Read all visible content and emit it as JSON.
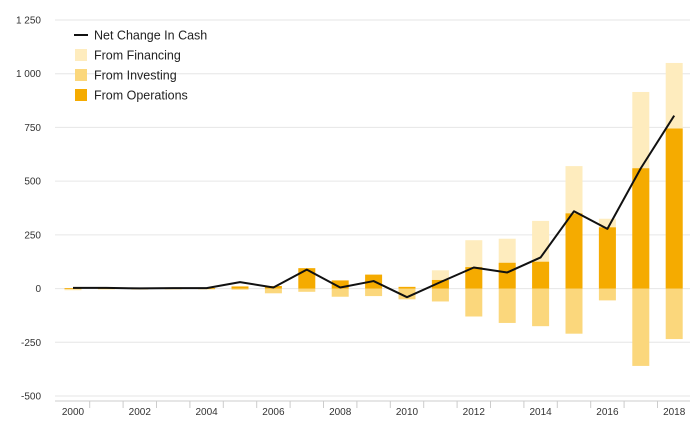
{
  "chart_data": {
    "type": "bar",
    "title": "",
    "xlabel": "",
    "ylabel": "",
    "ylim": [
      -500,
      1250
    ],
    "yticks": [
      -500,
      -250,
      0,
      250,
      500,
      750,
      1000,
      1250
    ],
    "ytick_labels": [
      "-500",
      "-250",
      "0",
      "250",
      "500",
      "750",
      "1 000",
      "1 250"
    ],
    "categories": [
      2000,
      2001,
      2002,
      2003,
      2004,
      2005,
      2006,
      2007,
      2008,
      2009,
      2010,
      2011,
      2012,
      2013,
      2014,
      2015,
      2016,
      2017,
      2018
    ],
    "xtick_labels": [
      "2000",
      "2002",
      "2004",
      "2006",
      "2008",
      "2010",
      "2012",
      "2014",
      "2016",
      "2018"
    ],
    "legend_position": "top-left",
    "legend": [
      "Net Change In Cash",
      "From Financing",
      "From Investing",
      "From Operations"
    ],
    "series": [
      {
        "name": "From Operations",
        "kind": "bar",
        "color": "#f5ab00",
        "values": [
          2,
          2,
          1,
          2,
          2,
          10,
          12,
          95,
          38,
          65,
          8,
          40,
          100,
          120,
          125,
          350,
          285,
          560,
          745
        ]
      },
      {
        "name": "From Investing",
        "kind": "bar",
        "color": "#fbd77c",
        "values": [
          -3,
          -2,
          -2,
          -2,
          -3,
          -5,
          -22,
          -15,
          -38,
          -35,
          -50,
          -60,
          -130,
          -160,
          -175,
          -210,
          -55,
          -360,
          -235
        ]
      },
      {
        "name": "From Financing",
        "kind": "bar",
        "color": "#feecbe",
        "values": [
          -8,
          0,
          0,
          0,
          0,
          0,
          0,
          0,
          0,
          0,
          -5,
          85,
          225,
          232,
          315,
          570,
          325,
          915,
          1050
        ]
      },
      {
        "name": "Net Change In Cash",
        "kind": "line",
        "color": "#111111",
        "values": [
          3,
          3,
          1,
          2,
          2,
          30,
          5,
          88,
          5,
          35,
          -40,
          30,
          98,
          75,
          145,
          360,
          278,
          560,
          805
        ]
      }
    ]
  }
}
